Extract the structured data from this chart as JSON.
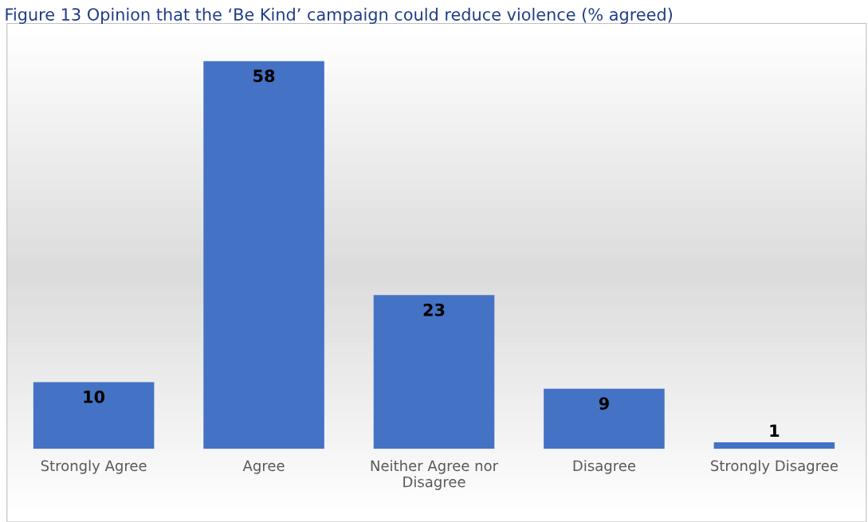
{
  "chart_data": {
    "type": "bar",
    "title": "Figure 13 Opinion that the ‘Be Kind’ campaign could reduce violence (% agreed)",
    "categories": [
      "Strongly Agree",
      "Agree",
      "Neither Agree nor\nDisagree",
      "Disagree",
      "Strongly Disagree"
    ],
    "values": [
      10,
      58,
      23,
      9,
      1
    ],
    "color": "#4472c4",
    "data_labels": true,
    "grid": false,
    "legend": false
  }
}
